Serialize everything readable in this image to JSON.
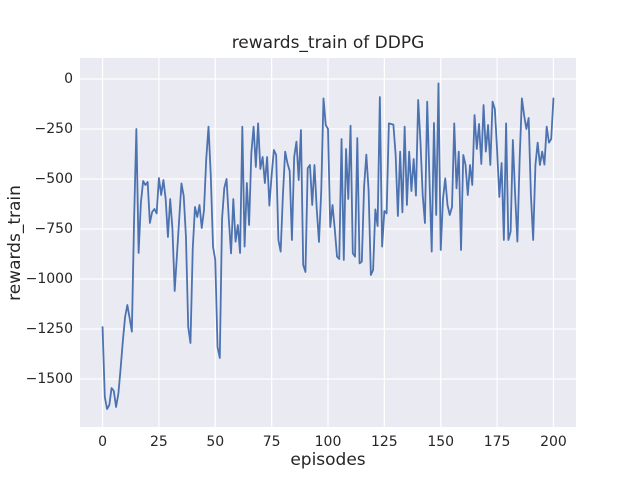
{
  "figure": {
    "background": "#ffffff",
    "axes_background": "#eaeaf2",
    "grid_color": "#ffffff",
    "text_color": "#262626"
  },
  "chart_data": {
    "type": "line",
    "title": "rewards_train of DDPG",
    "xlabel": "episodes",
    "ylabel": "rewards_train",
    "legend": false,
    "grid": true,
    "line_color": "#4c72b0",
    "line_width": 1.8,
    "xlim": [
      -10,
      210
    ],
    "ylim": [
      -1740,
      105
    ],
    "x_ticks": [
      0,
      25,
      50,
      75,
      100,
      125,
      150,
      175,
      200
    ],
    "x_tick_labels": [
      "0",
      "25",
      "50",
      "75",
      "100",
      "125",
      "150",
      "175",
      "200"
    ],
    "y_ticks": [
      0,
      -250,
      -500,
      -750,
      -1000,
      -1250,
      -1500
    ],
    "y_tick_labels": [
      "0",
      "−250",
      "−500",
      "−750",
      "−1000",
      "−1250",
      "−1500"
    ],
    "series_name": "rewards_train",
    "x": [
      0,
      1,
      2,
      3,
      4,
      5,
      6,
      7,
      8,
      9,
      10,
      11,
      12,
      13,
      14,
      15,
      16,
      17,
      18,
      19,
      20,
      21,
      22,
      23,
      24,
      25,
      26,
      27,
      28,
      29,
      30,
      31,
      32,
      33,
      34,
      35,
      36,
      37,
      38,
      39,
      40,
      41,
      42,
      43,
      44,
      45,
      46,
      47,
      48,
      49,
      50,
      51,
      52,
      53,
      54,
      55,
      56,
      57,
      58,
      59,
      60,
      61,
      62,
      63,
      64,
      65,
      66,
      67,
      68,
      69,
      70,
      71,
      72,
      73,
      74,
      75,
      76,
      77,
      78,
      79,
      80,
      81,
      82,
      83,
      84,
      85,
      86,
      87,
      88,
      89,
      90,
      91,
      92,
      93,
      94,
      95,
      96,
      97,
      98,
      99,
      100,
      101,
      102,
      103,
      104,
      105,
      106,
      107,
      108,
      109,
      110,
      111,
      112,
      113,
      114,
      115,
      116,
      117,
      118,
      119,
      120,
      121,
      122,
      123,
      124,
      125,
      126,
      127,
      128,
      129,
      130,
      131,
      132,
      133,
      134,
      135,
      136,
      137,
      138,
      139,
      140,
      141,
      142,
      143,
      144,
      145,
      146,
      147,
      148,
      149,
      150,
      151,
      152,
      153,
      154,
      155,
      156,
      157,
      158,
      159,
      160,
      161,
      162,
      163,
      164,
      165,
      166,
      167,
      168,
      169,
      170,
      171,
      172,
      173,
      174,
      175,
      176,
      177,
      178,
      179,
      180,
      181,
      182,
      183,
      184,
      185,
      186,
      187,
      188,
      189,
      190,
      191,
      192,
      193,
      194,
      195,
      196,
      197,
      198,
      199,
      200
    ],
    "y": [
      -1240,
      -1590,
      -1650,
      -1630,
      -1545,
      -1560,
      -1640,
      -1575,
      -1450,
      -1310,
      -1190,
      -1130,
      -1195,
      -1263,
      -700,
      -250,
      -870,
      -620,
      -510,
      -530,
      -515,
      -720,
      -665,
      -650,
      -672,
      -495,
      -580,
      -505,
      -600,
      -790,
      -600,
      -750,
      -1060,
      -880,
      -700,
      -522,
      -585,
      -790,
      -1240,
      -1320,
      -850,
      -640,
      -690,
      -630,
      -745,
      -655,
      -400,
      -238,
      -480,
      -838,
      -905,
      -1340,
      -1395,
      -700,
      -545,
      -500,
      -700,
      -872,
      -600,
      -813,
      -730,
      -870,
      -238,
      -838,
      -520,
      -730,
      -370,
      -238,
      -440,
      -222,
      -450,
      -390,
      -520,
      -390,
      -633,
      -480,
      -355,
      -380,
      -805,
      -863,
      -580,
      -363,
      -420,
      -460,
      -805,
      -390,
      -313,
      -505,
      -255,
      -930,
      -965,
      -446,
      -430,
      -630,
      -430,
      -650,
      -815,
      -560,
      -97,
      -230,
      -250,
      -740,
      -630,
      -750,
      -888,
      -900,
      -300,
      -905,
      -350,
      -600,
      -234,
      -872,
      -888,
      -295,
      -922,
      -913,
      -540,
      -378,
      -555,
      -980,
      -955,
      -652,
      -735,
      -90,
      -838,
      -660,
      -672,
      -222,
      -225,
      -228,
      -380,
      -685,
      -363,
      -667,
      -238,
      -630,
      -363,
      -560,
      -400,
      -583,
      -105,
      -312,
      -580,
      -720,
      -113,
      -500,
      -863,
      -220,
      -680,
      -22,
      -855,
      -600,
      -497,
      -630,
      -680,
      -640,
      -222,
      -547,
      -363,
      -855,
      -380,
      -430,
      -580,
      -430,
      -530,
      -180,
      -350,
      -225,
      -425,
      -130,
      -363,
      -230,
      -430,
      -113,
      -150,
      -355,
      -590,
      -420,
      -805,
      -222,
      -805,
      -763,
      -305,
      -580,
      -813,
      -400,
      -97,
      -183,
      -250,
      -195,
      -580,
      -805,
      -430,
      -318,
      -430,
      -363,
      -428,
      -238,
      -318,
      -300,
      -97
    ]
  }
}
